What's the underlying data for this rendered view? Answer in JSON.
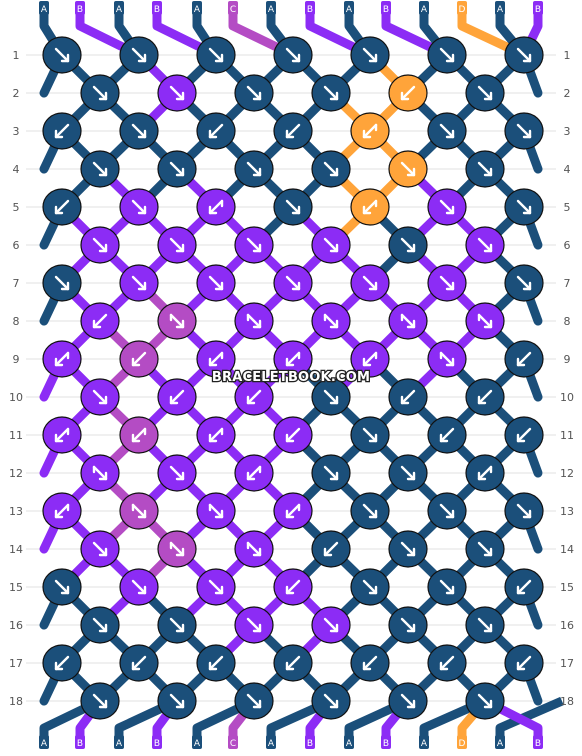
{
  "watermark": "BRACELETBOOK.COM",
  "colors": {
    "A": "#1b4f7a",
    "B": "#8c2cf5",
    "C": "#b44cc4",
    "D": "#ffa43a"
  },
  "top_labels": [
    "A",
    "B",
    "A",
    "B",
    "A",
    "C",
    "A",
    "B",
    "A",
    "B",
    "A",
    "D",
    "A",
    "B"
  ],
  "bottom_labels": [
    "A",
    "B",
    "A",
    "B",
    "A",
    "C",
    "A",
    "B",
    "A",
    "B",
    "A",
    "D",
    "A",
    "B"
  ],
  "row_numbers": [
    "1",
    "2",
    "3",
    "4",
    "5",
    "6",
    "7",
    "8",
    "9",
    "10",
    "11",
    "12",
    "13",
    "14",
    "15",
    "16",
    "17",
    "18"
  ],
  "knot_rows": [
    [
      [
        "A",
        "R"
      ],
      [
        "A",
        "R"
      ],
      [
        "A",
        "R"
      ],
      [
        "A",
        "R"
      ],
      [
        "A",
        "R"
      ],
      [
        "A",
        "R"
      ],
      [
        "A",
        "R"
      ]
    ],
    [
      [
        "A",
        "R"
      ],
      [
        "B",
        "R"
      ],
      [
        "A",
        "R"
      ],
      [
        "A",
        "R"
      ],
      [
        "D",
        "L"
      ],
      [
        "A",
        "R"
      ]
    ],
    [
      [
        "A",
        "L"
      ],
      [
        "A",
        "R"
      ],
      [
        "A",
        "L"
      ],
      [
        "A",
        "L"
      ],
      [
        "D",
        "LL"
      ],
      [
        "A",
        "R"
      ],
      [
        "A",
        "R"
      ]
    ],
    [
      [
        "A",
        "R"
      ],
      [
        "A",
        "R"
      ],
      [
        "A",
        "R"
      ],
      [
        "A",
        "R"
      ],
      [
        "D",
        "R"
      ],
      [
        "A",
        "R"
      ]
    ],
    [
      [
        "A",
        "L"
      ],
      [
        "B",
        "R"
      ],
      [
        "B",
        "LL"
      ],
      [
        "A",
        "R"
      ],
      [
        "D",
        "LL"
      ],
      [
        "B",
        "R"
      ],
      [
        "A",
        "R"
      ]
    ],
    [
      [
        "B",
        "R"
      ],
      [
        "B",
        "R"
      ],
      [
        "B",
        "R"
      ],
      [
        "B",
        "R"
      ],
      [
        "A",
        "R"
      ],
      [
        "B",
        "R"
      ]
    ],
    [
      [
        "A",
        "R"
      ],
      [
        "B",
        "R"
      ],
      [
        "B",
        "R"
      ],
      [
        "B",
        "R"
      ],
      [
        "B",
        "R"
      ],
      [
        "B",
        "R"
      ],
      [
        "A",
        "R"
      ]
    ],
    [
      [
        "B",
        "L"
      ],
      [
        "C",
        "RR"
      ],
      [
        "B",
        "RR"
      ],
      [
        "B",
        "RR"
      ],
      [
        "B",
        "RR"
      ],
      [
        "B",
        "RR"
      ]
    ],
    [
      [
        "B",
        "LL"
      ],
      [
        "C",
        "L"
      ],
      [
        "B",
        "LL"
      ],
      [
        "B",
        "LL"
      ],
      [
        "B",
        "LL"
      ],
      [
        "B",
        "RR"
      ],
      [
        "A",
        "L"
      ]
    ],
    [
      [
        "B",
        "R"
      ],
      [
        "B",
        "L"
      ],
      [
        "B",
        "L"
      ],
      [
        "A",
        "R"
      ],
      [
        "A",
        "L"
      ],
      [
        "A",
        "L"
      ]
    ],
    [
      [
        "B",
        "LL"
      ],
      [
        "C",
        "LL"
      ],
      [
        "B",
        "LL"
      ],
      [
        "B",
        "L"
      ],
      [
        "A",
        "R"
      ],
      [
        "A",
        "L"
      ],
      [
        "A",
        "L"
      ]
    ],
    [
      [
        "B",
        "RR"
      ],
      [
        "B",
        "R"
      ],
      [
        "B",
        "LL"
      ],
      [
        "A",
        "R"
      ],
      [
        "A",
        "R"
      ],
      [
        "A",
        "LL"
      ]
    ],
    [
      [
        "B",
        "LL"
      ],
      [
        "C",
        "RR"
      ],
      [
        "B",
        "RR"
      ],
      [
        "B",
        "LL"
      ],
      [
        "A",
        "R"
      ],
      [
        "A",
        "R"
      ],
      [
        "A",
        "R"
      ]
    ],
    [
      [
        "B",
        "R"
      ],
      [
        "C",
        "RR"
      ],
      [
        "B",
        "RR"
      ],
      [
        "A",
        "L"
      ],
      [
        "A",
        "R"
      ],
      [
        "A",
        "R"
      ]
    ],
    [
      [
        "A",
        "R"
      ],
      [
        "B",
        "R"
      ],
      [
        "B",
        "R"
      ],
      [
        "B",
        "L"
      ],
      [
        "A",
        "R"
      ],
      [
        "A",
        "R"
      ],
      [
        "A",
        "L"
      ]
    ],
    [
      [
        "A",
        "R"
      ],
      [
        "A",
        "R"
      ],
      [
        "B",
        "R"
      ],
      [
        "B",
        "R"
      ],
      [
        "A",
        "R"
      ],
      [
        "A",
        "R"
      ]
    ],
    [
      [
        "A",
        "L"
      ],
      [
        "A",
        "L"
      ],
      [
        "A",
        "L"
      ],
      [
        "A",
        "L"
      ],
      [
        "A",
        "L"
      ],
      [
        "A",
        "L"
      ],
      [
        "A",
        "L"
      ]
    ],
    [
      [
        "A",
        "R"
      ],
      [
        "A",
        "R"
      ],
      [
        "A",
        "R"
      ],
      [
        "A",
        "R"
      ],
      [
        "A",
        "R"
      ],
      [
        "A",
        "R"
      ]
    ]
  ]
}
